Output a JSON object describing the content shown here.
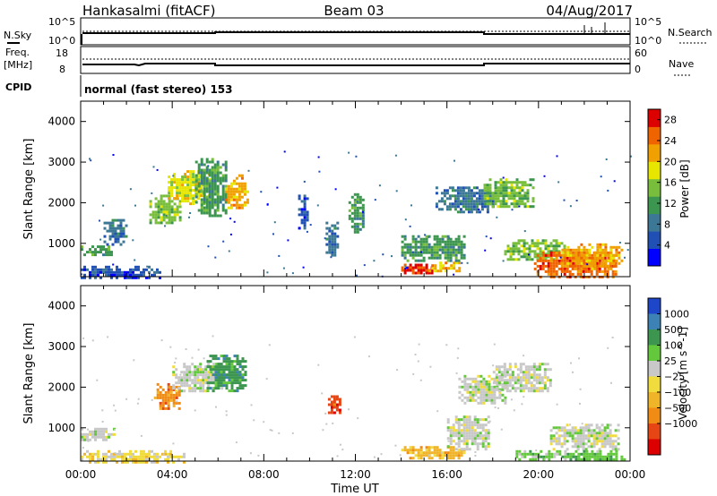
{
  "header": {
    "station": "Hankasalmi (fitACF)",
    "beam": "Beam 03",
    "date": "04/Aug/2017"
  },
  "noise_panel": {
    "left_label": "N.Sky",
    "right_label": "N.Search",
    "left_ticks": [
      "10^5",
      "10^0"
    ],
    "right_ticks": [
      "10^5",
      "10^0"
    ]
  },
  "freq_panel": {
    "left_label_1": "Freq.",
    "left_label_2": "[MHz]",
    "right_label": "Nave",
    "left_ticks": [
      "18",
      "8"
    ],
    "right_ticks": [
      "60",
      "0"
    ]
  },
  "cpid_panel": {
    "label": "CPID",
    "text": "normal (fast stereo) 153"
  },
  "chart_data": [
    {
      "type": "heatmap",
      "name": "power",
      "ylabel": "Slant Range [km]",
      "y_ticks": [
        "1000",
        "2000",
        "3000",
        "4000"
      ],
      "ylim": [
        180,
        4500
      ],
      "xlim": [
        0,
        24
      ],
      "colorbar": {
        "label": "Power [dB]",
        "ticks": [
          "4",
          "8",
          "12",
          "16",
          "20",
          "24",
          "28"
        ],
        "range": [
          0,
          30
        ],
        "colors": [
          "#0000ff",
          "#2050b4",
          "#3c7896",
          "#3c9650",
          "#78be3c",
          "#e6e600",
          "#f0a000",
          "#f06400",
          "#dc0000"
        ]
      },
      "regions": [
        {
          "t": [
            0.0,
            1.3
          ],
          "r": [
            700,
            950
          ],
          "level": 12
        },
        {
          "t": [
            0.0,
            3.5
          ],
          "r": [
            180,
            450
          ],
          "level": 4
        },
        {
          "t": [
            1.0,
            2.0
          ],
          "r": [
            1000,
            1600
          ],
          "level": 8
        },
        {
          "t": [
            3.0,
            4.3
          ],
          "r": [
            1500,
            2200
          ],
          "level": 16
        },
        {
          "t": [
            3.8,
            5.6
          ],
          "r": [
            2000,
            2800
          ],
          "level": 18
        },
        {
          "t": [
            5.0,
            6.4
          ],
          "r": [
            1700,
            3100
          ],
          "level": 12
        },
        {
          "t": [
            6.3,
            7.3
          ],
          "r": [
            1900,
            2700
          ],
          "level": 20
        },
        {
          "t": [
            9.5,
            9.9
          ],
          "r": [
            1400,
            2200
          ],
          "level": 6
        },
        {
          "t": [
            10.7,
            11.2
          ],
          "r": [
            700,
            1600
          ],
          "level": 8
        },
        {
          "t": [
            11.7,
            12.4
          ],
          "r": [
            1300,
            2300
          ],
          "level": 10
        },
        {
          "t": [
            14.0,
            15.5
          ],
          "r": [
            250,
            500
          ],
          "level": 28
        },
        {
          "t": [
            15.2,
            16.5
          ],
          "r": [
            300,
            550
          ],
          "level": 22
        },
        {
          "t": [
            14.0,
            16.8
          ],
          "r": [
            600,
            1200
          ],
          "level": 12
        },
        {
          "t": [
            15.5,
            18.0
          ],
          "r": [
            1800,
            2400
          ],
          "level": 8
        },
        {
          "t": [
            17.6,
            19.8
          ],
          "r": [
            1900,
            2600
          ],
          "level": 14
        },
        {
          "t": [
            18.5,
            21.2
          ],
          "r": [
            600,
            1100
          ],
          "level": 14
        },
        {
          "t": [
            19.8,
            23.4
          ],
          "r": [
            200,
            800
          ],
          "level": 26
        },
        {
          "t": [
            21.0,
            23.7
          ],
          "r": [
            400,
            1000
          ],
          "level": 20
        }
      ]
    },
    {
      "type": "heatmap",
      "name": "velocity",
      "ylabel": "Slant Range [km]",
      "xlabel": "Time UT",
      "y_ticks": [
        "1000",
        "2000",
        "3000",
        "4000"
      ],
      "x_ticks": [
        "00:00",
        "04:00",
        "08:00",
        "12:00",
        "16:00",
        "20:00",
        "00:00"
      ],
      "ylim": [
        180,
        4500
      ],
      "xlim": [
        0,
        24
      ],
      "colorbar": {
        "label": "Velocity [m s^-1]",
        "ticks": [
          "1000",
          "500",
          "100",
          "25",
          "−25",
          "−100",
          "−500",
          "−1000"
        ],
        "colors": [
          "#1e46c8",
          "#3c82b4",
          "#3c9650",
          "#64c83c",
          "#c8c8c8",
          "#f0dc3c",
          "#f0b428",
          "#f08c14",
          "#e64614",
          "#dc0000"
        ]
      },
      "regions": [
        {
          "t": [
            0.0,
            1.5
          ],
          "r": [
            700,
            1000
          ],
          "class": 4
        },
        {
          "t": [
            0.0,
            4.5
          ],
          "r": [
            180,
            450
          ],
          "class": 5
        },
        {
          "t": [
            3.2,
            4.3
          ],
          "r": [
            1500,
            2100
          ],
          "class": 7
        },
        {
          "t": [
            4.0,
            6.2
          ],
          "r": [
            1900,
            2600
          ],
          "class": 4
        },
        {
          "t": [
            5.5,
            7.2
          ],
          "r": [
            1900,
            2800
          ],
          "class": 2
        },
        {
          "t": [
            10.8,
            11.3
          ],
          "r": [
            1400,
            1800
          ],
          "class": 8
        },
        {
          "t": [
            14.0,
            16.8
          ],
          "r": [
            250,
            550
          ],
          "class": 6
        },
        {
          "t": [
            16.0,
            17.8
          ],
          "r": [
            500,
            1300
          ],
          "class": 4
        },
        {
          "t": [
            16.5,
            18.5
          ],
          "r": [
            1600,
            2300
          ],
          "class": 4
        },
        {
          "t": [
            18.0,
            20.5
          ],
          "r": [
            1900,
            2600
          ],
          "class": 4
        },
        {
          "t": [
            19.0,
            21.0
          ],
          "r": [
            250,
            450
          ],
          "class": 3
        },
        {
          "t": [
            20.5,
            23.5
          ],
          "r": [
            500,
            1100
          ],
          "class": 4
        },
        {
          "t": [
            21.0,
            23.8
          ],
          "r": [
            200,
            450
          ],
          "class": 3
        }
      ]
    }
  ]
}
